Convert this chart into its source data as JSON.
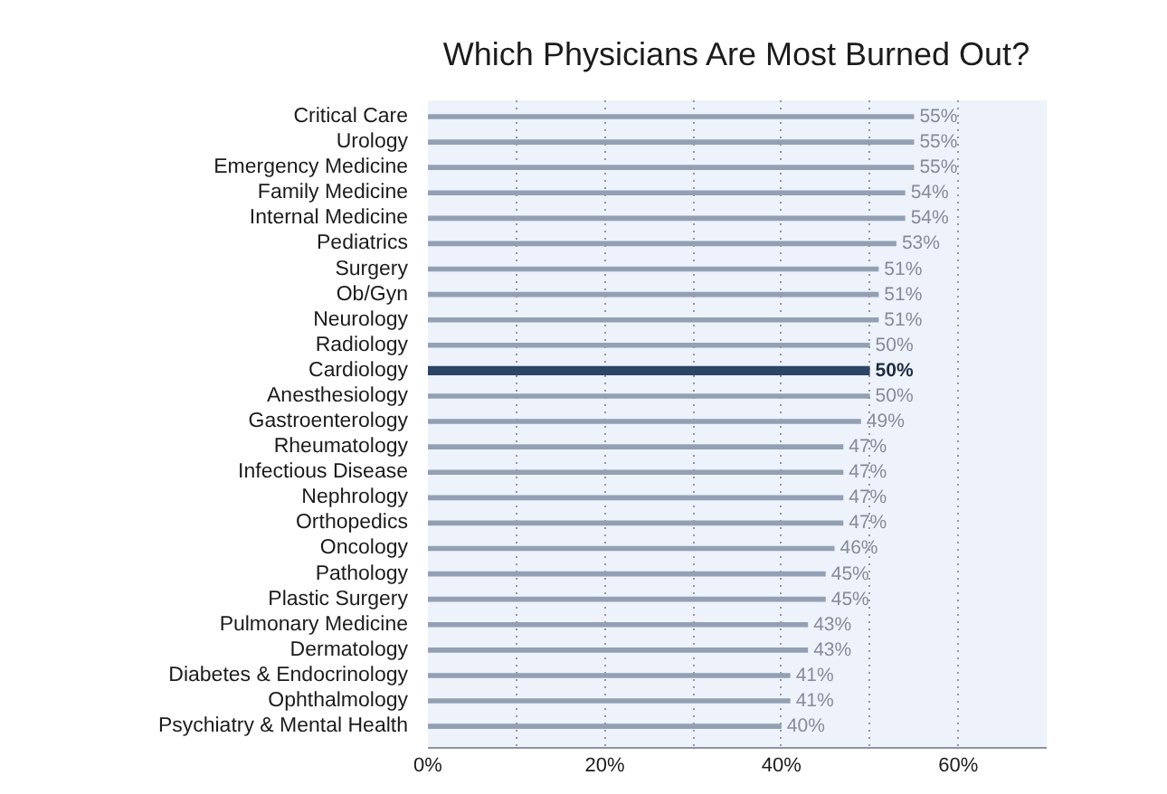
{
  "chart_data": {
    "type": "bar",
    "orientation": "horizontal",
    "title": "Which Physicians Are Most Burned Out?",
    "categories": [
      "Critical Care",
      "Urology",
      "Emergency Medicine",
      "Family Medicine",
      "Internal Medicine",
      "Pediatrics",
      "Surgery",
      "Ob/Gyn",
      "Neurology",
      "Radiology",
      "Cardiology",
      "Anesthesiology",
      "Gastroenterology",
      "Rheumatology",
      "Infectious Disease",
      "Nephrology",
      "Orthopedics",
      "Oncology",
      "Pathology",
      "Plastic Surgery",
      "Pulmonary Medicine",
      "Dermatology",
      "Diabetes & Endocrinology",
      "Ophthalmology",
      "Psychiatry & Mental Health"
    ],
    "values": [
      55,
      55,
      55,
      54,
      54,
      53,
      51,
      51,
      51,
      50,
      50,
      50,
      49,
      47,
      47,
      47,
      47,
      46,
      45,
      45,
      43,
      43,
      41,
      41,
      40
    ],
    "value_labels": [
      "55%",
      "55%",
      "55%",
      "54%",
      "54%",
      "53%",
      "51%",
      "51%",
      "51%",
      "50%",
      "50%",
      "50%",
      "49%",
      "47%",
      "47%",
      "47%",
      "47%",
      "46%",
      "45%",
      "45%",
      "43%",
      "43%",
      "41%",
      "41%",
      "40%"
    ],
    "colors": [
      "#93a0b4",
      "#93a0b4",
      "#93a0b4",
      "#93a0b4",
      "#93a0b4",
      "#93a0b4",
      "#93a0b4",
      "#93a0b4",
      "#93a0b4",
      "#93a0b4",
      "#2c4566",
      "#93a0b4",
      "#93a0b4",
      "#93a0b4",
      "#93a0b4",
      "#93a0b4",
      "#93a0b4",
      "#93a0b4",
      "#93a0b4",
      "#93a0b4",
      "#93a0b4",
      "#93a0b4",
      "#93a0b4",
      "#93a0b4",
      "#93a0b4"
    ],
    "xlim": [
      0,
      70
    ],
    "xticks": [
      {
        "value": 0,
        "label": "0%"
      },
      {
        "value": 10,
        "label": null
      },
      {
        "value": 20,
        "label": "20%"
      },
      {
        "value": 30,
        "label": null
      },
      {
        "value": 40,
        "label": "40%"
      },
      {
        "value": 50,
        "label": null
      },
      {
        "value": 60,
        "label": "60%"
      }
    ],
    "grid": "x"
  }
}
